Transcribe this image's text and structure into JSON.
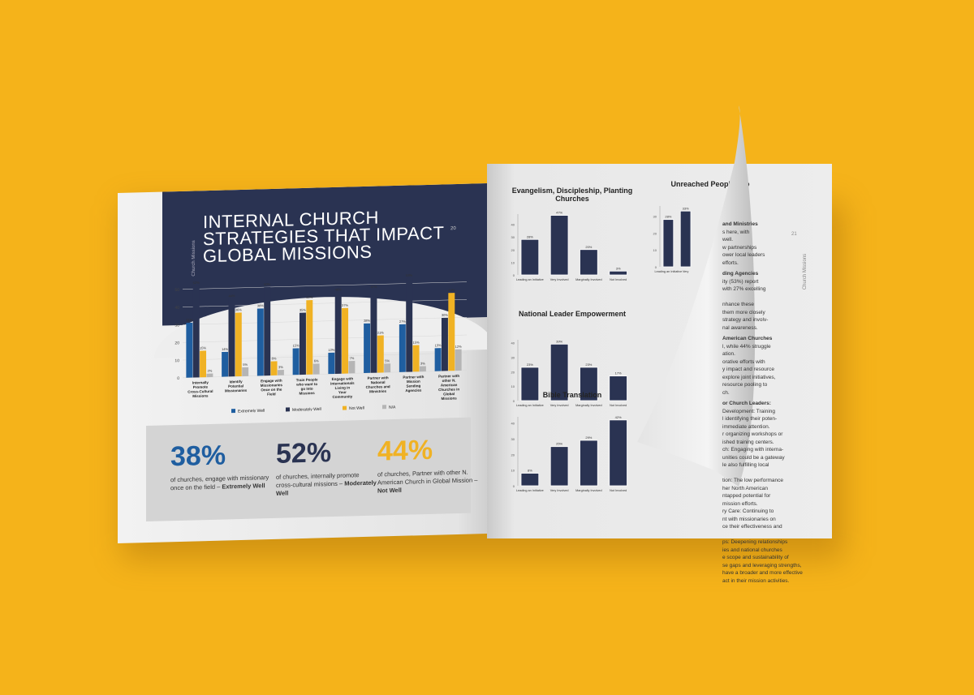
{
  "left_page": {
    "title_lines": [
      "INTERNAL CHURCH",
      "STRATEGIES THAT IMPACT",
      "GLOBAL MISSIONS"
    ],
    "side_label": "Church Missions",
    "page_number": "20",
    "stats": [
      {
        "value": "38%",
        "color": "#1f5ea0",
        "text": "of churches, engage with missionary once on the field –",
        "emphasis": "Extremely Well"
      },
      {
        "value": "52%",
        "color": "#2a3352",
        "text": "of churches, internally promote cross-cultural missions –",
        "emphasis": "Moderately Well"
      },
      {
        "value": "44%",
        "color": "#F0B224",
        "text": "of churches, Partner with other N. American Church in Global Mission –",
        "emphasis": "Not Well"
      }
    ]
  },
  "right_page": {
    "page_number": "21",
    "side_label": "Church Missions",
    "text_fragments": [
      {
        "heading": "and Ministries",
        "lines": [
          "s here, with",
          "well.",
          "w partnerships",
          "ower local leaders",
          "efforts."
        ]
      },
      {
        "heading": "ding Agencies",
        "lines": [
          "ity (53%) report",
          "with 27% excelling",
          "",
          "nhance these",
          "them more closely",
          "strategy and involv-",
          "nal awareness."
        ]
      },
      {
        "heading": "American Churches",
        "lines": [
          "l, while 44% struggle",
          "ation.",
          "orative efforts with",
          "y impact and resource",
          "explore joint initiatives,",
          "resource pooling to",
          "ch."
        ]
      },
      {
        "heading": "or Church Leaders:",
        "lines": [
          "Development: Training",
          "l identifying their poten-",
          "immediate attention.",
          "r organizing workshops or",
          "ished training centers.",
          "ch: Engaging with interna-",
          "unities could be a gateway",
          "le also fulfilling local",
          "",
          "tion: The low performance",
          "her North American",
          "ntapped potential for",
          "mission efforts.",
          "ry Care: Continuing to",
          "nt with missionaries on",
          "ce their effectiveness and",
          "",
          "ps: Deepening relationships",
          "ies and national churches",
          "e scope and sustainability of"
        ]
      },
      {
        "heading": "",
        "lines": [
          "se gaps and leveraging strengths,",
          "have a broader and more effective",
          "act in their mission activities."
        ]
      }
    ]
  },
  "colors": {
    "background": "#F5B31A",
    "navy": "#2a3352",
    "blue": "#1f5ea0",
    "gold": "#F0B224",
    "gray": "#b5b5b5"
  },
  "chart_data": [
    {
      "type": "bar",
      "categories": [
        "Internally Promote Cross-Cultural Missions",
        "Identify Potential Missionaries",
        "Engage with Missionaries Once on the Field",
        "Train People who want to go Into Missions",
        "Engage with Internationals Living in Your Community",
        "Partner with National Churches and Ministries",
        "Partner with Mission Sending Agencies",
        "Partner with other N. American Churches in Global Missions"
      ],
      "series": [
        {
          "name": "Extremely Well",
          "color": "#1f5ea0",
          "values": [
            31,
            14,
            38,
            15,
            12,
            28,
            27,
            13
          ]
        },
        {
          "name": "Moderately Well",
          "color": "#2a3352",
          "values": [
            52,
            44,
            50,
            35,
            46,
            47,
            53,
            30
          ]
        },
        {
          "name": "Not Well",
          "color": "#F0B224",
          "values": [
            15,
            36,
            8,
            42,
            37,
            21,
            15,
            44
          ]
        },
        {
          "name": "N/A",
          "color": "#b5b5b5",
          "values": [
            2,
            5,
            3,
            6,
            7,
            5,
            3,
            12
          ]
        }
      ],
      "yticks": [
        0,
        10,
        20,
        30,
        40,
        50
      ],
      "ylim": [
        0,
        55
      ],
      "legend": "bottom",
      "grid": true
    },
    {
      "type": "bar",
      "title": "Evangelism, Discipleship, Planting Churches",
      "categories": [
        "Leading an Initiative",
        "Very Involved",
        "Marginally Involved",
        "Not Involved"
      ],
      "values": [
        28,
        47,
        20,
        3
      ],
      "yticks": [
        0,
        10,
        20,
        30,
        40
      ],
      "ylim": [
        0,
        48
      ]
    },
    {
      "type": "bar",
      "title": "National Leader Empowerment",
      "categories": [
        "Leading an Initiative",
        "Very Involved",
        "Marginally Involved",
        "Not Involved"
      ],
      "values": [
        23,
        39,
        23,
        17
      ],
      "yticks": [
        0,
        10,
        20,
        30,
        40
      ],
      "ylim": [
        0,
        42
      ]
    },
    {
      "type": "bar",
      "title": "Bible Translation",
      "categories": [
        "Leading an Initiative",
        "Very Involved",
        "Marginally Involved",
        "Not Involved"
      ],
      "values": [
        8,
        25,
        29,
        42
      ],
      "yticks": [
        0,
        10,
        20,
        30,
        40
      ],
      "ylim": [
        0,
        44
      ]
    },
    {
      "type": "bar",
      "title": "Unreached People Gro",
      "categories": [
        "Leading an Initiative",
        "Very"
      ],
      "values": [
        28,
        33
      ],
      "yticks": [
        0,
        10,
        20,
        30
      ],
      "ylim": [
        0,
        36
      ]
    }
  ]
}
